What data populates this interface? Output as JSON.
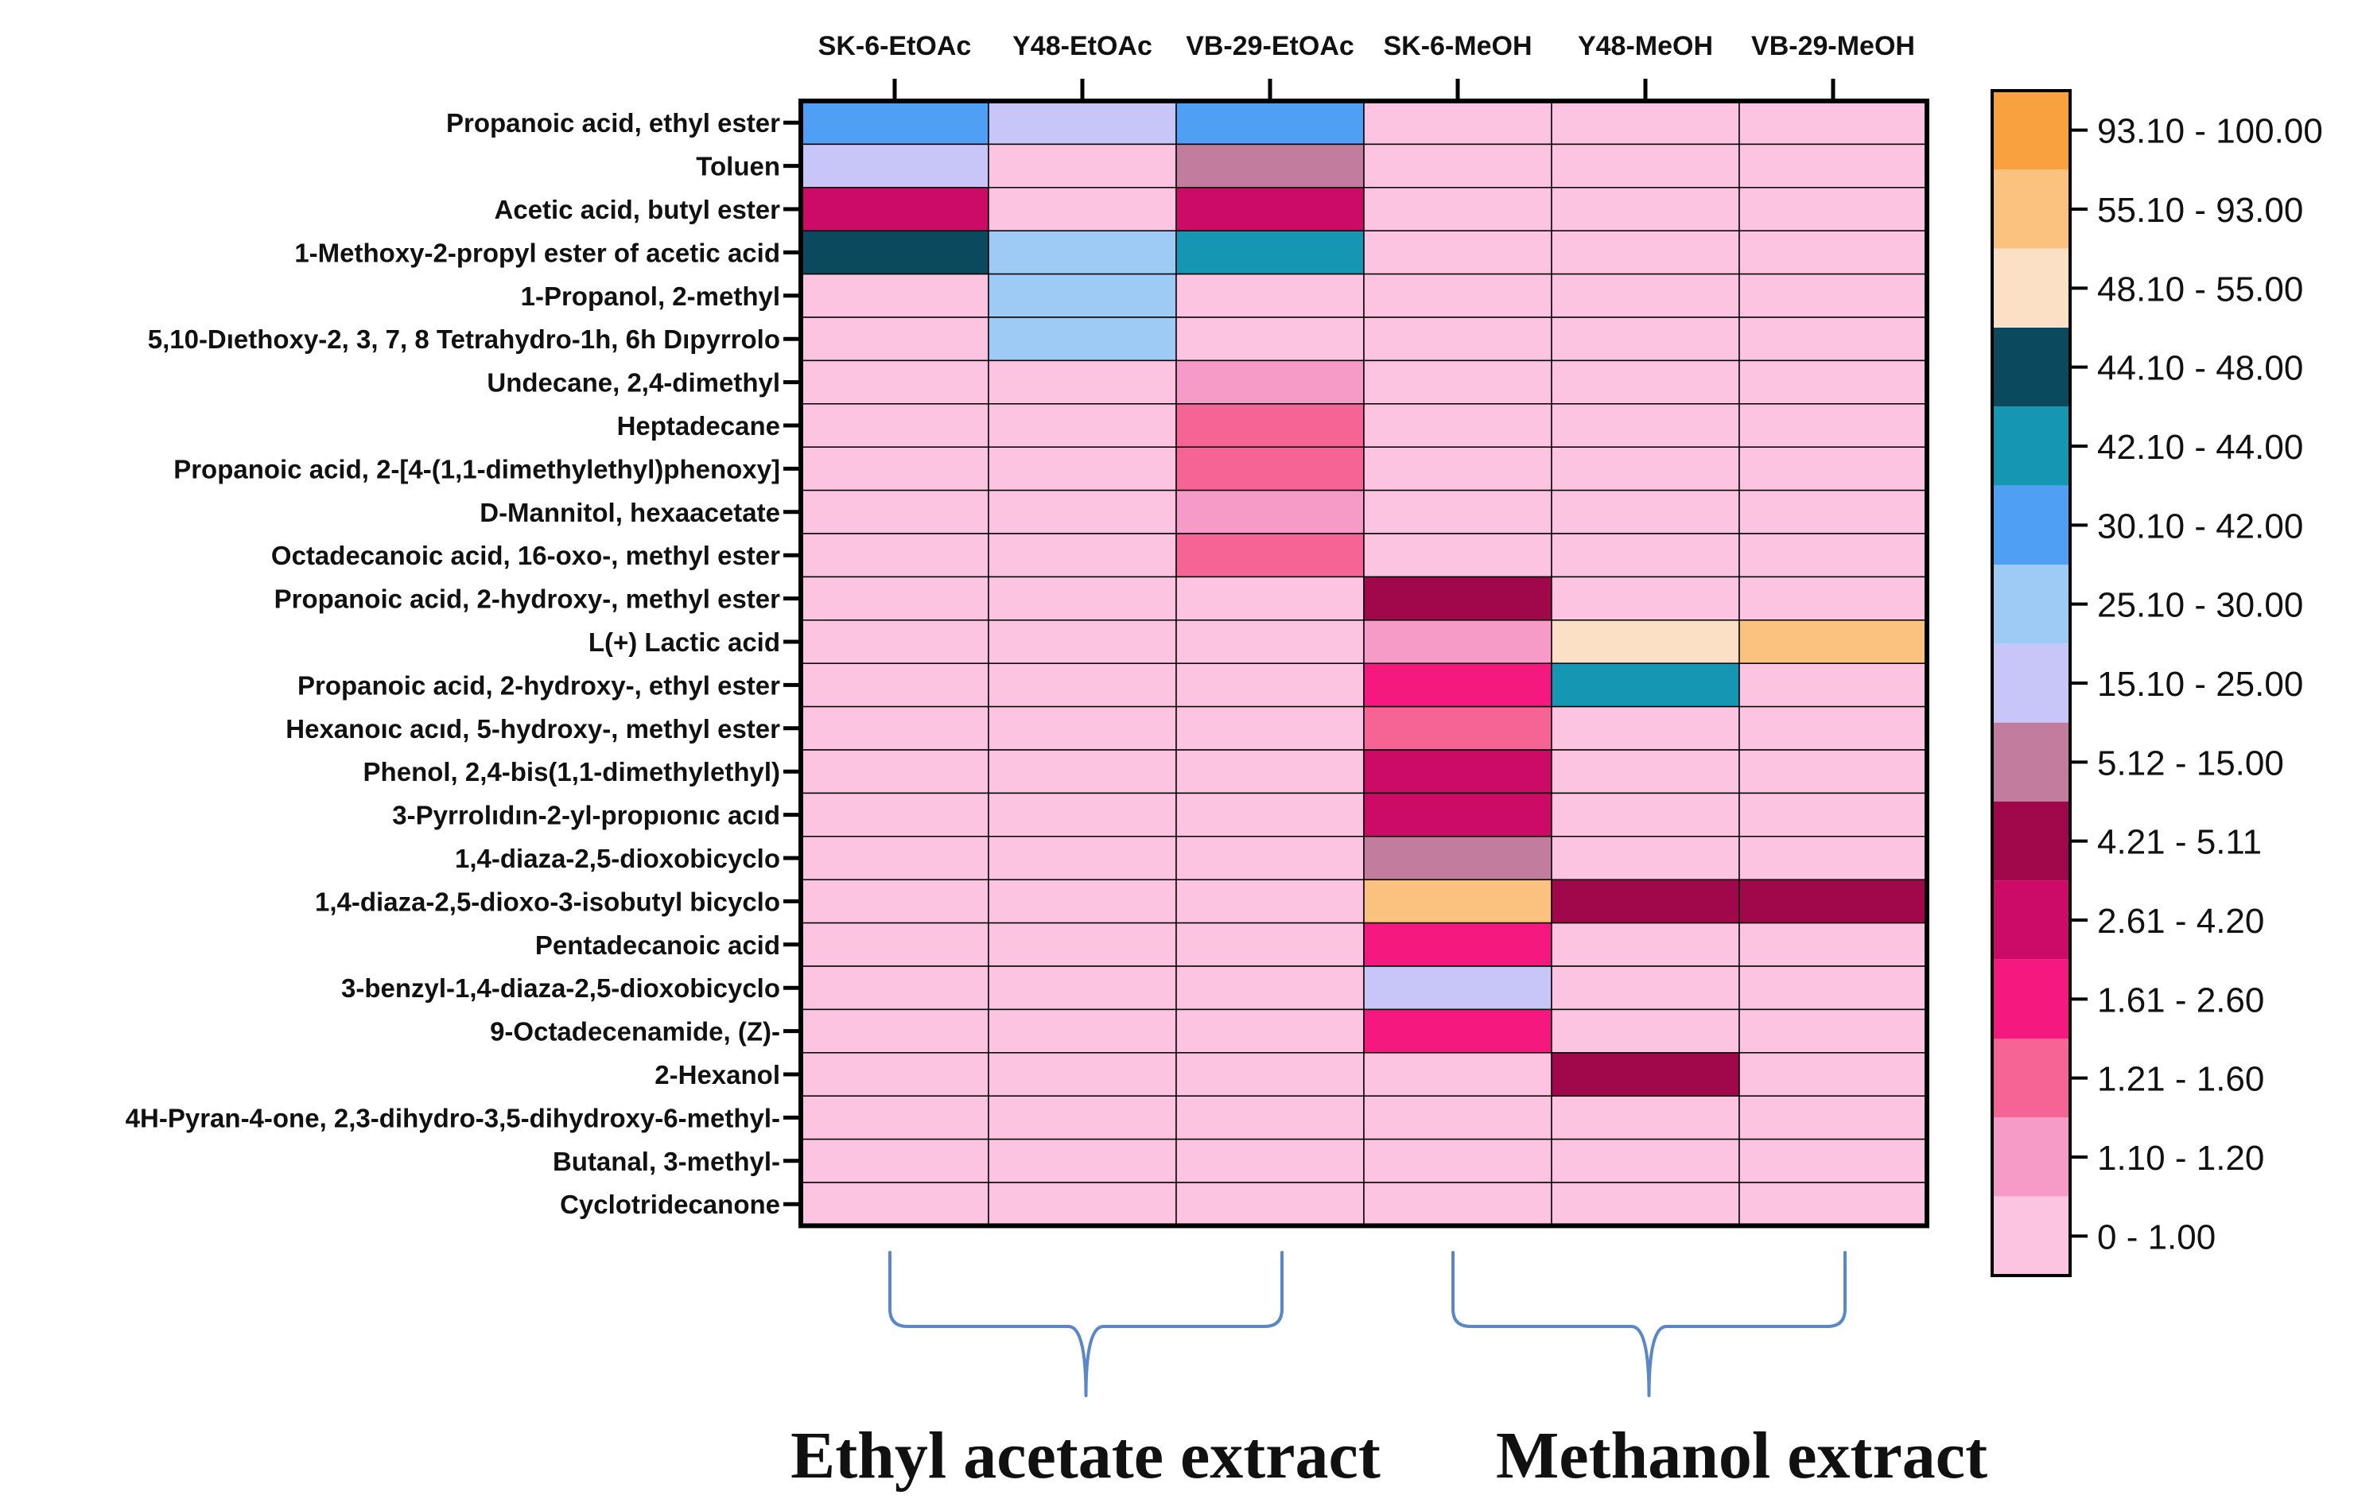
{
  "chart_data": {
    "type": "heatmap",
    "columns": [
      "SK-6-EtOAc",
      "Y48-EtOAc",
      "VB-29-EtOAc",
      "SK-6-MeOH",
      "Y48-MeOH",
      "VB-29-MeOH"
    ],
    "rows": [
      "Propanoic acid, ethyl ester",
      "Toluen",
      "Acetic acid, butyl ester",
      "1-Methoxy-2-propyl ester of acetic acid",
      "1-Propanol, 2-methyl",
      "5,10-Dıethoxy-2, 3, 7, 8 Tetrahydro-1h, 6h Dıpyrrolo",
      "Undecane, 2,4-dimethyl",
      "Heptadecane",
      "Propanoic acid, 2-[4-(1,1-dimethylethyl)phenoxy]",
      "D-Mannitol, hexaacetate",
      "Octadecanoic acid, 16-oxo-, methyl ester",
      "Propanoic acid, 2-hydroxy-, methyl ester",
      "L(+) Lactic acid",
      "Propanoic acid, 2-hydroxy-, ethyl ester",
      "Hexanoıc acıd, 5-hydroxy-, methyl ester",
      "Phenol, 2,4-bis(1,1-dimethylethyl)",
      "3-Pyrrolıdın-2-yl-propıonıc acıd",
      "1,4-diaza-2,5-dioxobicyclo",
      "1,4-diaza-2,5-dioxo-3-isobutyl bicyclo",
      "Pentadecanoic acid",
      "3-benzyl-1,4-diaza-2,5-dioxobicyclo",
      "9-Octadecenamide, (Z)-",
      "2-Hexanol",
      "4H-Pyran-4-one, 2,3-dihydro-3,5-dihydroxy-6-methyl-",
      "Butanal, 3-methyl-",
      "Cyclotridecanone"
    ],
    "values": [
      [
        36,
        20,
        36,
        0.5,
        0.5,
        0.5
      ],
      [
        20,
        0.5,
        10,
        0.5,
        0.5,
        0.5
      ],
      [
        3.4,
        0.5,
        3.4,
        0.5,
        0.5,
        0.5
      ],
      [
        46,
        27,
        43,
        0.5,
        0.5,
        0.5
      ],
      [
        0.5,
        27,
        0.5,
        0.5,
        0.5,
        0.5
      ],
      [
        0.5,
        27,
        0.5,
        0.5,
        0.5,
        0.5
      ],
      [
        0.5,
        0.5,
        1.15,
        0.5,
        0.5,
        0.5
      ],
      [
        0.5,
        0.5,
        1.4,
        0.5,
        0.5,
        0.5
      ],
      [
        0.5,
        0.5,
        1.4,
        0.5,
        0.5,
        0.5
      ],
      [
        0.5,
        0.5,
        1.15,
        0.5,
        0.5,
        0.5
      ],
      [
        0.5,
        0.5,
        1.4,
        0.5,
        0.5,
        0.5
      ],
      [
        0.5,
        0.5,
        0.5,
        4.7,
        0.5,
        0.5
      ],
      [
        0.5,
        0.5,
        0.5,
        1.15,
        51,
        75
      ],
      [
        0.5,
        0.5,
        0.5,
        2.1,
        43,
        0.5
      ],
      [
        0.5,
        0.5,
        0.5,
        1.4,
        0.5,
        0.5
      ],
      [
        0.5,
        0.5,
        0.5,
        3.4,
        0.5,
        0.5
      ],
      [
        0.5,
        0.5,
        0.5,
        3.4,
        0.5,
        0.5
      ],
      [
        0.5,
        0.5,
        0.5,
        10,
        0.5,
        0.5
      ],
      [
        0.5,
        0.5,
        0.5,
        75,
        4.7,
        4.7
      ],
      [
        0.5,
        0.5,
        0.5,
        2.1,
        0.5,
        0.5
      ],
      [
        0.5,
        0.5,
        0.5,
        20,
        0.5,
        0.5
      ],
      [
        0.5,
        0.5,
        0.5,
        2.1,
        0.5,
        0.5
      ],
      [
        0.5,
        0.5,
        0.5,
        0.5,
        4.7,
        0.5
      ],
      [
        0.5,
        0.5,
        0.5,
        0.5,
        0.5,
        0.5
      ],
      [
        0.5,
        0.5,
        0.5,
        0.5,
        0.5,
        0.5
      ],
      [
        0.5,
        0.5,
        0.5,
        0.5,
        0.5,
        0.5
      ]
    ],
    "legend": [
      {
        "label": "93.10 - 100.00",
        "min": 93.1,
        "max": 100.0,
        "color": "#F9A03F"
      },
      {
        "label": "55.10 - 93.00",
        "min": 55.1,
        "max": 93.0,
        "color": "#FBC27F"
      },
      {
        "label": "48.10 - 55.00",
        "min": 48.1,
        "max": 55.0,
        "color": "#FCE0C5"
      },
      {
        "label": "44.10 - 48.00",
        "min": 44.1,
        "max": 48.0,
        "color": "#0B4A5E"
      },
      {
        "label": "42.10 - 44.00",
        "min": 42.1,
        "max": 44.0,
        "color": "#1596B3"
      },
      {
        "label": "30.10 - 42.00",
        "min": 30.1,
        "max": 42.0,
        "color": "#4F9FF4"
      },
      {
        "label": "25.10 - 30.00",
        "min": 25.1,
        "max": 30.0,
        "color": "#9ECAF6"
      },
      {
        "label": "15.10 - 25.00",
        "min": 15.1,
        "max": 25.0,
        "color": "#C8C6F9"
      },
      {
        "label": "5.12 - 15.00",
        "min": 5.12,
        "max": 15.0,
        "color": "#C27C9E"
      },
      {
        "label": "4.21 - 5.11",
        "min": 4.21,
        "max": 5.11,
        "color": "#A0084B"
      },
      {
        "label": "2.61 - 4.20",
        "min": 2.61,
        "max": 4.2,
        "color": "#CC0B66"
      },
      {
        "label": "1.61 - 2.60",
        "min": 1.61,
        "max": 2.6,
        "color": "#F5197F"
      },
      {
        "label": "1.21 - 1.60",
        "min": 1.21,
        "max": 1.6,
        "color": "#F66495"
      },
      {
        "label": "1.10 - 1.20",
        "min": 1.1,
        "max": 1.2,
        "color": "#F69BC8"
      },
      {
        "label": "0 - 1.00",
        "min": 0,
        "max": 1.0,
        "color": "#FCC4E1"
      }
    ],
    "groups": [
      {
        "label": "Ethyl acetate extract",
        "columns": [
          0,
          1,
          2
        ]
      },
      {
        "label": "Methanol extract",
        "columns": [
          3,
          4,
          5
        ]
      }
    ],
    "grid": true,
    "legend_position": "right"
  },
  "colors": {
    "brace": "#5B86C8",
    "grid": "#000000"
  }
}
